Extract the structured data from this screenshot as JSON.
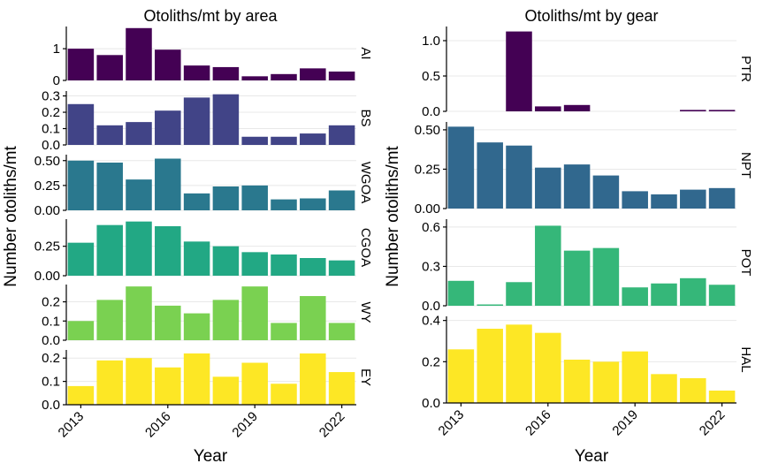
{
  "chart_data": [
    {
      "type": "bar",
      "title": "Otoliths/mt by area",
      "xlabel": "Year",
      "ylabel": "Number otoliths/mt",
      "x": [
        2013,
        2014,
        2015,
        2016,
        2017,
        2018,
        2019,
        2020,
        2021,
        2022
      ],
      "x_ticks": [
        "2013",
        "2016",
        "2019",
        "2022"
      ],
      "grid": "horizontal",
      "facets": [
        {
          "name": "AI",
          "color": "#440154",
          "ylim": [
            0,
            1.7
          ],
          "y_ticks": [
            "0",
            "1"
          ],
          "tick_values": [
            0,
            1
          ],
          "values": [
            1.0,
            0.8,
            1.65,
            0.97,
            0.47,
            0.42,
            0.13,
            0.2,
            0.38,
            0.28
          ]
        },
        {
          "name": "BS",
          "color": "#414487",
          "ylim": [
            0,
            0.33
          ],
          "y_ticks": [
            "0.0",
            "0.1",
            "0.2",
            "0.3"
          ],
          "tick_values": [
            0,
            0.1,
            0.2,
            0.3
          ],
          "values": [
            0.25,
            0.12,
            0.14,
            0.21,
            0.29,
            0.31,
            0.05,
            0.05,
            0.07,
            0.12
          ]
        },
        {
          "name": "WGOA",
          "color": "#2A788E",
          "ylim": [
            0,
            0.56
          ],
          "y_ticks": [
            "0.00",
            "0.25",
            "0.50"
          ],
          "tick_values": [
            0,
            0.25,
            0.5
          ],
          "values": [
            0.5,
            0.48,
            0.31,
            0.52,
            0.17,
            0.24,
            0.25,
            0.11,
            0.12,
            0.2
          ]
        },
        {
          "name": "CGOA",
          "color": "#22A884",
          "ylim": [
            0,
            0.48
          ],
          "y_ticks": [
            "0.00",
            "0.25"
          ],
          "tick_values": [
            0,
            0.25
          ],
          "values": [
            0.28,
            0.43,
            0.46,
            0.42,
            0.29,
            0.25,
            0.2,
            0.18,
            0.15,
            0.13
          ]
        },
        {
          "name": "WY",
          "color": "#7AD151",
          "ylim": [
            0,
            0.29
          ],
          "y_ticks": [
            "0.0",
            "0.1",
            "0.2"
          ],
          "tick_values": [
            0,
            0.1,
            0.2
          ],
          "values": [
            0.1,
            0.21,
            0.28,
            0.18,
            0.14,
            0.21,
            0.28,
            0.09,
            0.23,
            0.09
          ]
        },
        {
          "name": "EY",
          "color": "#FDE725",
          "ylim": [
            0,
            0.235
          ],
          "y_ticks": [
            "0.0",
            "0.1",
            "0.2"
          ],
          "tick_values": [
            0,
            0.1,
            0.2
          ],
          "values": [
            0.08,
            0.19,
            0.2,
            0.16,
            0.22,
            0.12,
            0.18,
            0.09,
            0.22,
            0.14
          ]
        }
      ]
    },
    {
      "type": "bar",
      "title": "Otoliths/mt by gear",
      "xlabel": "Year",
      "ylabel": "Number otoliths/mt",
      "x": [
        2013,
        2014,
        2015,
        2016,
        2017,
        2018,
        2019,
        2020,
        2021,
        2022
      ],
      "x_ticks": [
        "2013",
        "2016",
        "2019",
        "2022"
      ],
      "grid": "horizontal",
      "facets": [
        {
          "name": "PTR",
          "color": "#440154",
          "ylim": [
            0,
            1.2
          ],
          "y_ticks": [
            "0.0",
            "0.5",
            "1.0"
          ],
          "tick_values": [
            0,
            0.5,
            1.0
          ],
          "values": [
            null,
            null,
            1.13,
            0.07,
            0.09,
            null,
            null,
            null,
            0.02,
            0.02
          ]
        },
        {
          "name": "NPT",
          "color": "#31688E",
          "ylim": [
            0,
            0.55
          ],
          "y_ticks": [
            "0.00",
            "0.25",
            "0.50"
          ],
          "tick_values": [
            0,
            0.25,
            0.5
          ],
          "values": [
            0.52,
            0.42,
            0.4,
            0.26,
            0.28,
            0.21,
            0.11,
            0.09,
            0.12,
            0.13
          ]
        },
        {
          "name": "POT",
          "color": "#35B779",
          "ylim": [
            0,
            0.66
          ],
          "y_ticks": [
            "0.0",
            "0.3",
            "0.6"
          ],
          "tick_values": [
            0,
            0.3,
            0.6
          ],
          "values": [
            0.19,
            0.01,
            0.18,
            0.61,
            0.42,
            0.44,
            0.14,
            0.17,
            0.21,
            0.16
          ]
        },
        {
          "name": "HAL",
          "color": "#FDE725",
          "ylim": [
            0,
            0.42
          ],
          "y_ticks": [
            "0.0",
            "0.2",
            "0.4"
          ],
          "tick_values": [
            0,
            0.2,
            0.4
          ],
          "values": [
            0.26,
            0.36,
            0.38,
            0.34,
            0.21,
            0.2,
            0.25,
            0.14,
            0.12,
            0.06
          ]
        }
      ]
    }
  ]
}
